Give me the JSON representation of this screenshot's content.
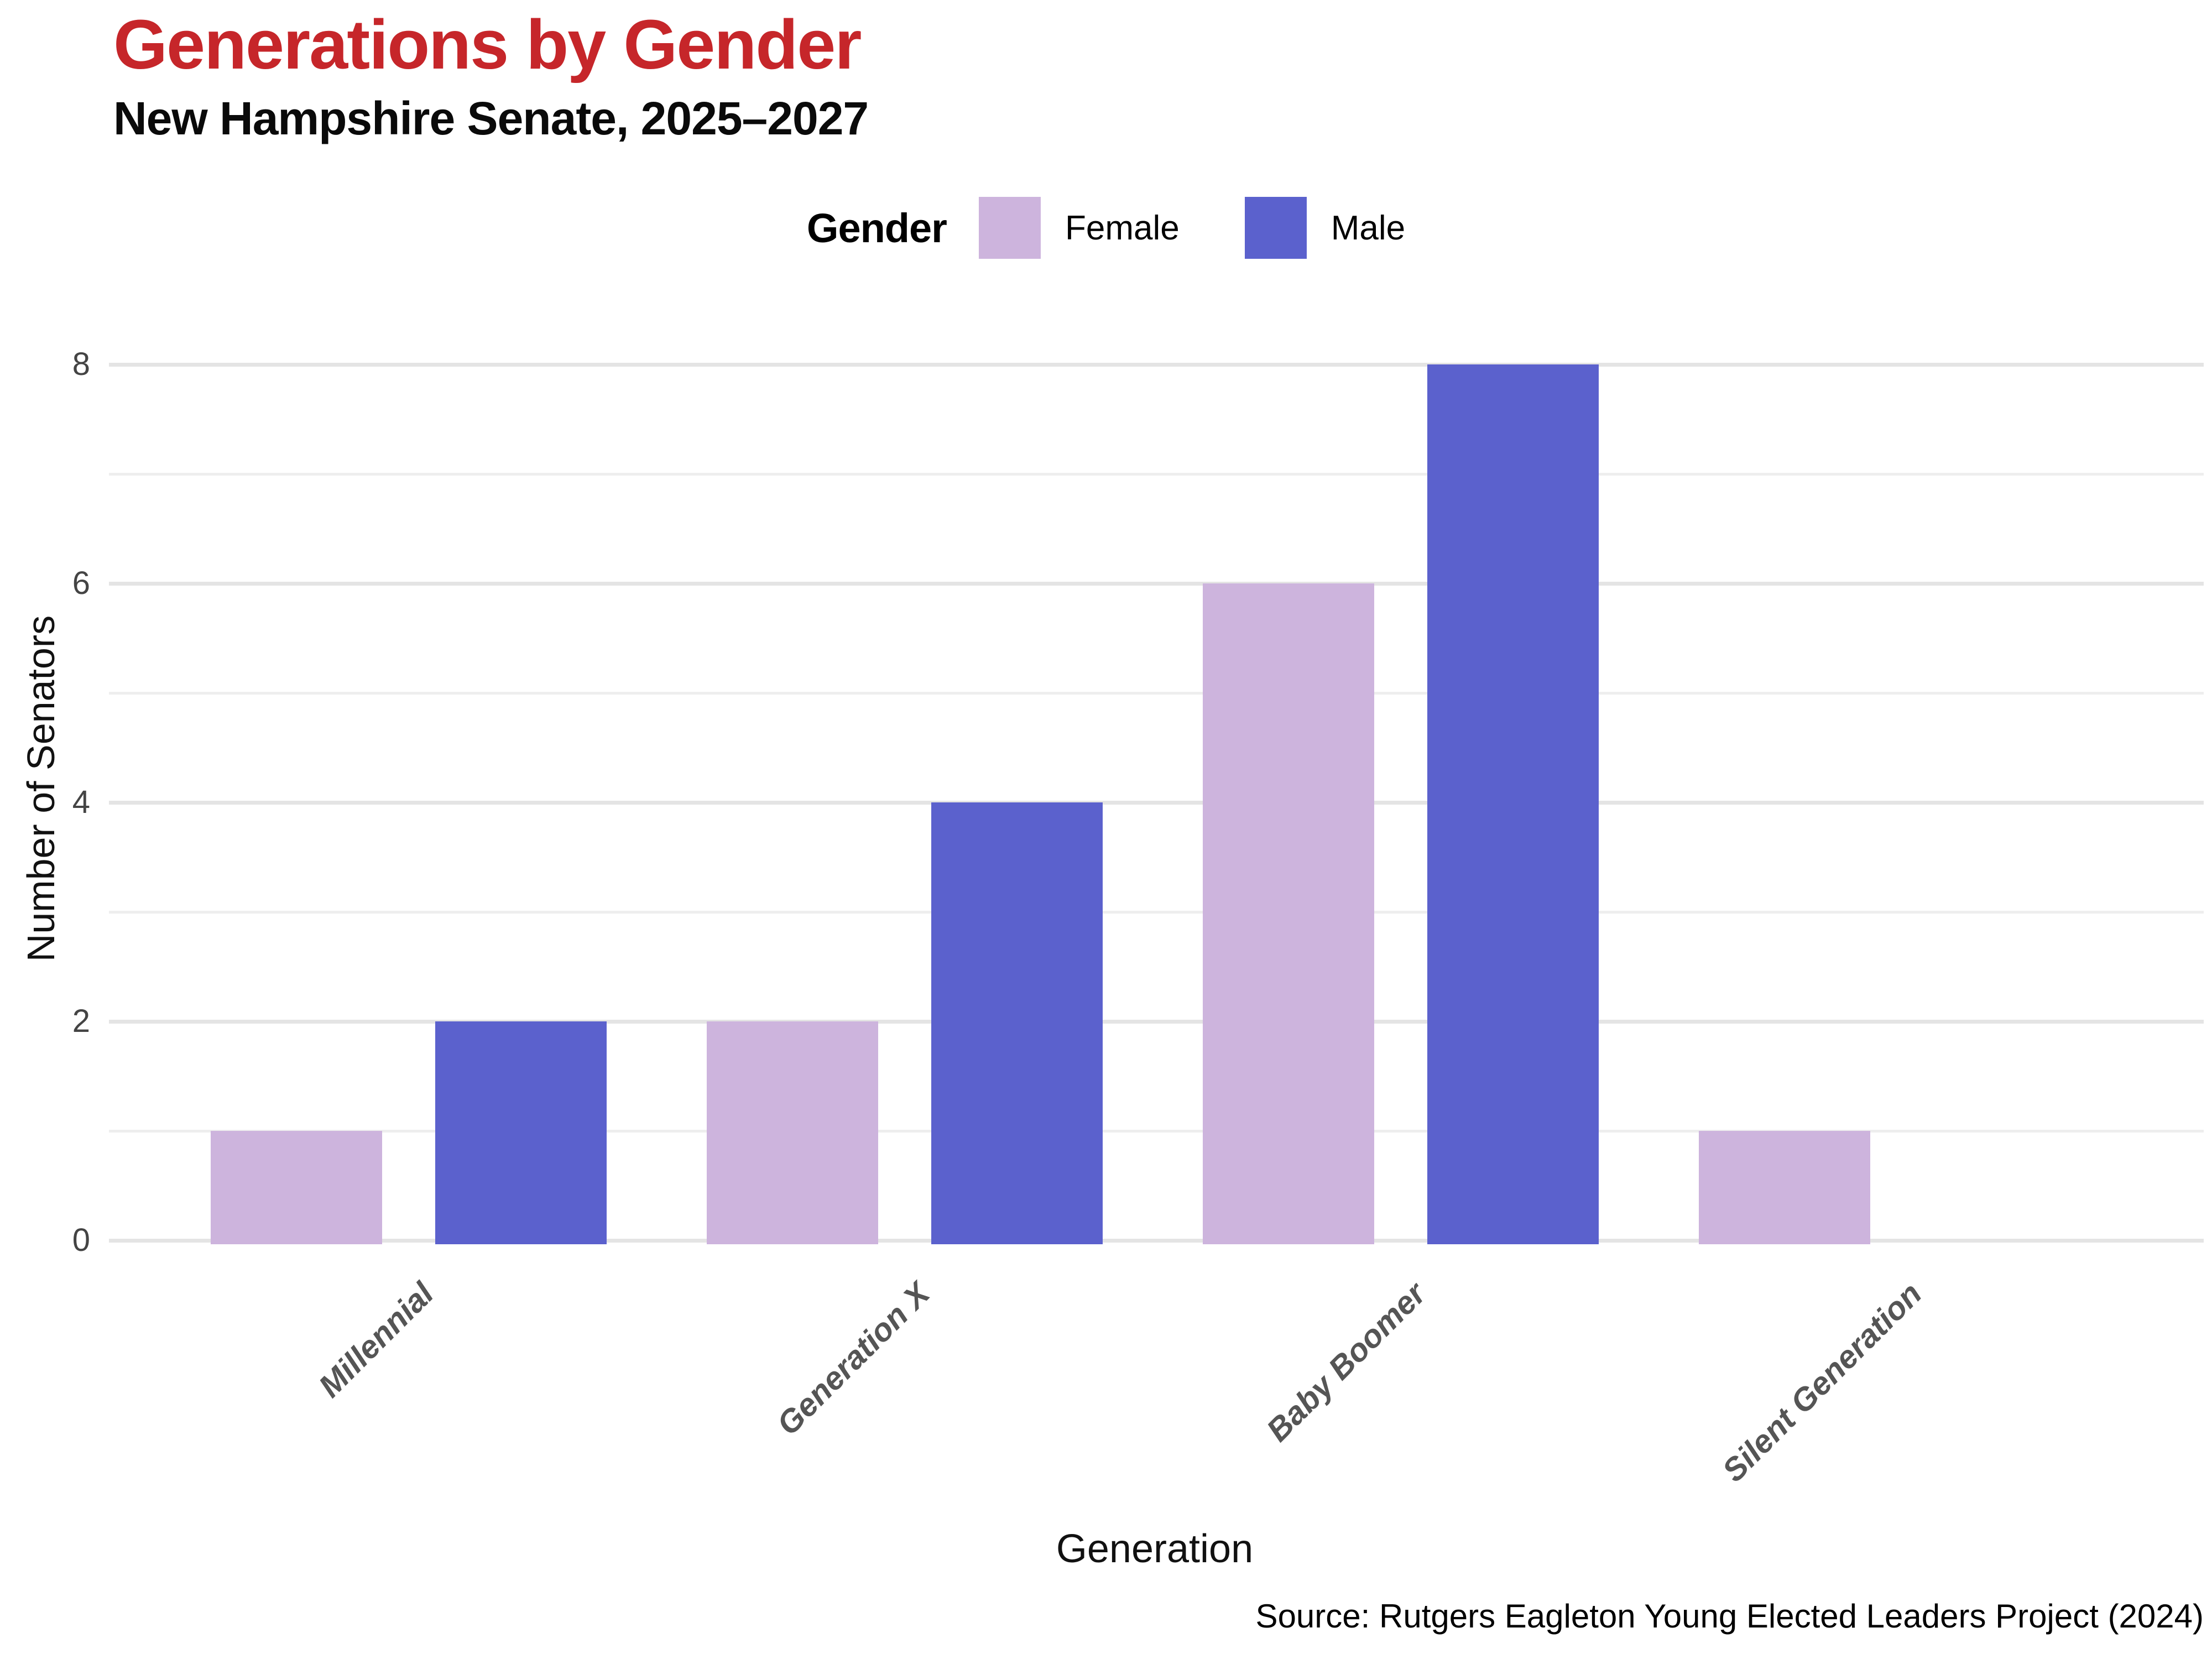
{
  "title": "Generations by Gender",
  "subtitle": "New Hampshire Senate, 2025–2027",
  "legend": {
    "title": "Gender",
    "items": [
      {
        "label": "Female",
        "color": "#cdb4dd"
      },
      {
        "label": "Male",
        "color": "#5b61cd"
      }
    ]
  },
  "x_axis_title": "Generation",
  "y_axis_title": "Number of Senators",
  "caption": "Source: Rutgers Eagleton Young Elected Leaders Project (2024)",
  "colors": {
    "title_red": "#c6262a",
    "major_gridline": "#e4e4e4",
    "minor_gridline": "#eeeeee",
    "y_tick_text": "#444444",
    "x_tick_text": "#555555",
    "background": "#ffffff"
  },
  "chart_data": {
    "type": "bar",
    "title": "Generations by Gender",
    "subtitle": "New Hampshire Senate, 2025–2027",
    "categories": [
      "Millennial",
      "Generation X",
      "Baby Boomer",
      "Silent Generation"
    ],
    "series": [
      {
        "name": "Female",
        "color": "#cdb4dd",
        "values": [
          1,
          2,
          6,
          1
        ]
      },
      {
        "name": "Male",
        "color": "#5b61cd",
        "values": [
          2,
          4,
          8,
          0
        ]
      }
    ],
    "xlabel": "Generation",
    "ylabel": "Number of Senators",
    "ylim": [
      0,
      8
    ],
    "yticks": [
      0,
      2,
      4,
      6,
      8
    ],
    "minor_gridlines": [
      1,
      3,
      5,
      7
    ],
    "grid": true,
    "legend_position": "top-center",
    "bar_orientation": "vertical",
    "source": "Source: Rutgers Eagleton Young Elected Leaders Project (2024)"
  }
}
